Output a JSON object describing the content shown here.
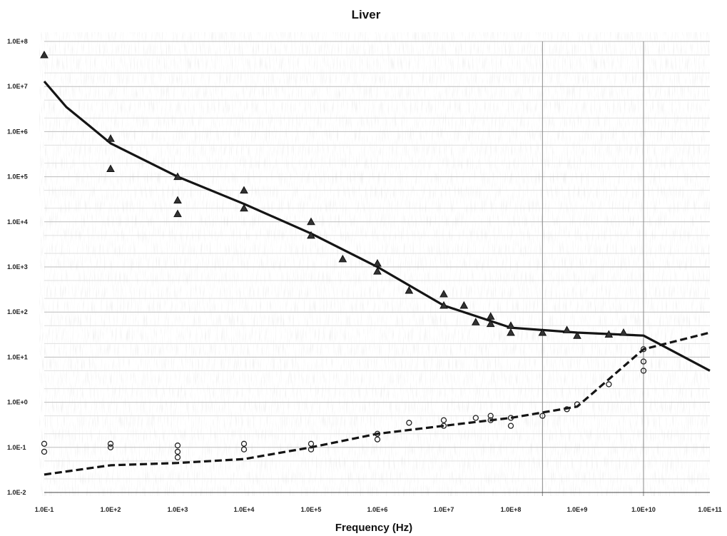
{
  "chart_data": {
    "type": "scatter",
    "title": "Liver",
    "xlabel": "Frequency (Hz)",
    "ylabel": "",
    "x_scale": "log",
    "y_scale": "log",
    "xlim": [
      0.1,
      100000000000
    ],
    "ylim": [
      0.01,
      100000000
    ],
    "x_ticks": [
      "1.0E-1",
      "1.0E+2",
      "1.0E+3",
      "1.0E+4",
      "1.0E+5",
      "1.0E+6",
      "1.0E+7",
      "1.0E+8",
      "1.0E+9",
      "1.0E+10",
      "1.0E+11"
    ],
    "x_tick_values": [
      0.1,
      100,
      1000,
      10000,
      100000,
      1000000,
      10000000,
      100000000,
      1000000000,
      10000000000,
      100000000000
    ],
    "y_ticks": [
      "1.0E+8",
      "1.0E+7",
      "1.0E+6",
      "1.0E+5",
      "1.0E+4",
      "1.0E+3",
      "1.0E+2",
      "1.0E+1",
      "1.0E+0",
      "1.0E-1",
      "1.0E-2"
    ],
    "y_tick_values": [
      100000000,
      10000000,
      1000000,
      100000,
      10000,
      1000,
      100,
      10,
      1,
      0.1,
      0.01
    ],
    "grid": true,
    "legend": "none",
    "series": [
      {
        "marker": "line",
        "style": "solid",
        "x": [
          0.1,
          1,
          10,
          100,
          1000,
          10000,
          100000,
          1000000,
          10000000,
          100000000,
          1000000000,
          10000000000,
          100000000000
        ],
        "y": [
          13000000,
          3500000,
          1400000,
          550000,
          100000,
          25000,
          5500,
          1000,
          140,
          45,
          35,
          30,
          5
        ]
      },
      {
        "marker": "line",
        "style": "dashed",
        "x": [
          0.1,
          100,
          1000,
          10000,
          100000,
          1000000,
          10000000,
          100000000,
          1000000000,
          10000000000,
          100000000000
        ],
        "y": [
          0.025,
          0.04,
          0.045,
          0.055,
          0.1,
          0.2,
          0.3,
          0.45,
          0.8,
          15,
          35
        ]
      },
      {
        "marker": "triangle",
        "x": [
          0.1,
          100,
          100,
          1000,
          1000,
          1000,
          10000,
          10000,
          100000,
          100000,
          300000,
          1000000,
          1000000,
          3000000,
          10000000,
          10000000,
          20000000,
          30000000,
          50000000,
          50000000,
          100000000,
          100000000,
          300000000,
          700000000,
          1000000000,
          3000000000,
          5000000000
        ],
        "y": [
          50000000,
          700000,
          150000,
          100000,
          30000,
          15000,
          50000,
          20000,
          10000,
          5000,
          1500,
          1200,
          800,
          300,
          250,
          140,
          140,
          60,
          80,
          55,
          50,
          35,
          35,
          40,
          30,
          32,
          35
        ]
      },
      {
        "marker": "circle",
        "x": [
          0.1,
          0.1,
          100,
          100,
          1000,
          1000,
          1000,
          10000,
          10000,
          100000,
          100000,
          1000000,
          1000000,
          3000000,
          10000000,
          10000000,
          30000000,
          50000000,
          50000000,
          100000000,
          100000000,
          300000000,
          700000000,
          1000000000,
          3000000000,
          10000000000,
          10000000000,
          10000000000
        ],
        "y": [
          0.12,
          0.08,
          0.12,
          0.1,
          0.11,
          0.08,
          0.06,
          0.12,
          0.09,
          0.12,
          0.09,
          0.2,
          0.15,
          0.35,
          0.4,
          0.3,
          0.45,
          0.5,
          0.4,
          0.45,
          0.3,
          0.5,
          0.7,
          0.9,
          2.5,
          8,
          5,
          15
        ]
      }
    ]
  }
}
